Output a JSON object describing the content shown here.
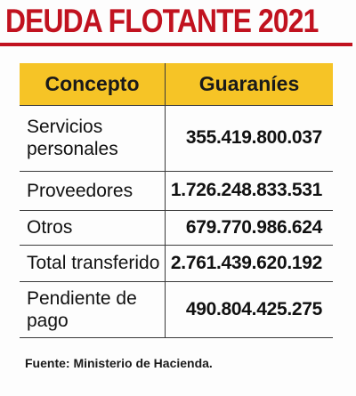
{
  "title": "DEUDA FLOTANTE 2021",
  "colors": {
    "accent_red": "#c1121f",
    "header_yellow": "#f6c426",
    "rule": "#3a3a3a"
  },
  "table": {
    "headers": [
      "Concepto",
      "Guaraníes"
    ],
    "rows": [
      {
        "concept": "Servicios personales",
        "amount": "355.419.800.037"
      },
      {
        "concept": "Proveedores",
        "amount": "1.726.248.833.531"
      },
      {
        "concept": "Otros",
        "amount": "679.770.986.624"
      },
      {
        "concept": "Total transferido",
        "amount": "2.761.439.620.192"
      },
      {
        "concept": "Pendiente de pago",
        "amount": "490.804.425.275"
      }
    ]
  },
  "source": "Fuente: Ministerio de Hacienda."
}
